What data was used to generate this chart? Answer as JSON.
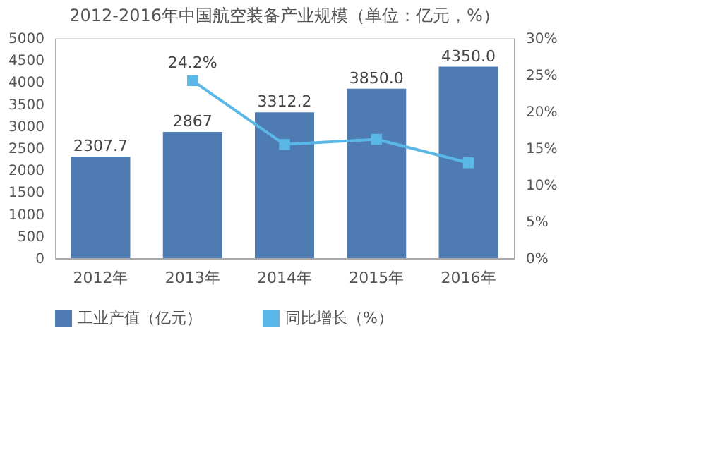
{
  "chart_data": {
    "type": "bar",
    "title": "2012-2016年中国航空装备产业规模（单位：亿元，%）",
    "categories": [
      "2012年",
      "2013年",
      "2014年",
      "2015年",
      "2016年"
    ],
    "series": [
      {
        "name": "工业产值（亿元）",
        "color": "#4f7bb3",
        "values": [
          2307.7,
          2867,
          3312.2,
          3850.0,
          4350.0
        ],
        "value_labels": [
          "2307.7",
          "2867",
          "3312.2",
          "3850.0",
          "4350.0"
        ]
      },
      {
        "name": "同比增长（%）",
        "type": "line",
        "axis": "y2",
        "color": "#5bb8e6",
        "marker": "square",
        "values": [
          null,
          24.2,
          15.5,
          16.2,
          13.0
        ],
        "value_labels": [
          null,
          "24.2%",
          null,
          null,
          null
        ]
      }
    ],
    "ylim": [
      0,
      5000
    ],
    "yticks": [
      0,
      500,
      1000,
      1500,
      2000,
      2500,
      3000,
      3500,
      4000,
      4500,
      5000
    ],
    "y2lim": [
      0,
      30
    ],
    "y2ticks": [
      {
        "value": 0,
        "label": "0%"
      },
      {
        "value": 5,
        "label": "5%"
      },
      {
        "value": 10,
        "label": "10%"
      },
      {
        "value": 15,
        "label": "15%"
      },
      {
        "value": 20,
        "label": "20%"
      },
      {
        "value": 25,
        "label": "25%"
      },
      {
        "value": 30,
        "label": "30%"
      }
    ],
    "legend": "bottom",
    "grid": false
  }
}
